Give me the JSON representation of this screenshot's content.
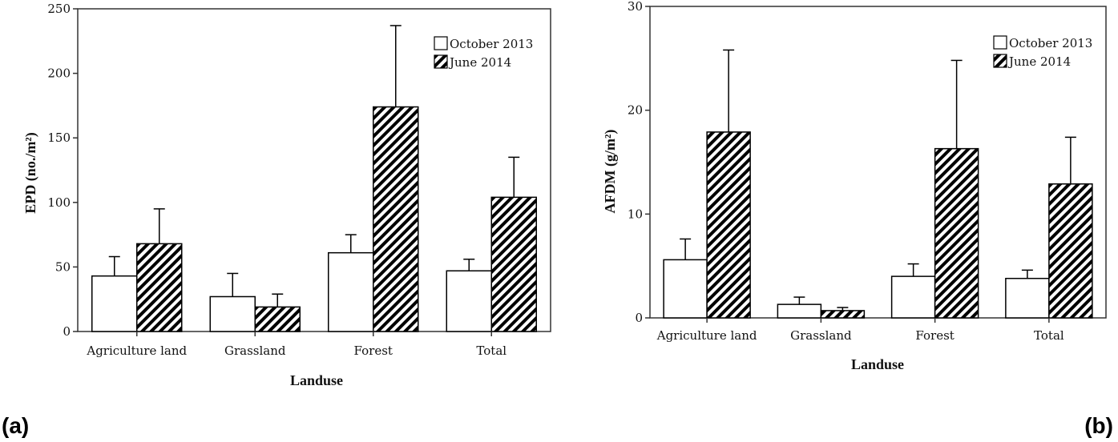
{
  "chart_data": [
    {
      "type": "bar",
      "panel_label": "(a)",
      "categories": [
        "Agriculture land",
        "Grassland",
        "Forest",
        "Total"
      ],
      "series": [
        {
          "name": "October 2013",
          "values": [
            43,
            27,
            61,
            47
          ],
          "error": [
            15,
            18,
            14,
            9
          ]
        },
        {
          "name": "June 2014",
          "values": [
            68,
            19,
            174,
            104
          ],
          "error": [
            27,
            10,
            63,
            31
          ]
        }
      ],
      "xlabel": "Landuse",
      "ylabel": "EPD (no./m²)",
      "ylim": [
        0,
        250
      ],
      "yticks": [
        0,
        50,
        100,
        150,
        200,
        250
      ],
      "legend_position": "top-right",
      "grid": false
    },
    {
      "type": "bar",
      "panel_label": "(b)",
      "categories": [
        "Agriculture land",
        "Grassland",
        "Forest",
        "Total"
      ],
      "series": [
        {
          "name": "October 2013",
          "values": [
            5.6,
            1.3,
            4.0,
            3.8
          ],
          "error": [
            2.0,
            0.7,
            1.2,
            0.8
          ]
        },
        {
          "name": "June 2014",
          "values": [
            17.9,
            0.7,
            16.3,
            12.9
          ],
          "error": [
            7.9,
            0.3,
            8.5,
            4.5
          ]
        }
      ],
      "xlabel": "Landuse",
      "ylabel": "AFDM (g/m²)",
      "ylim": [
        0,
        30
      ],
      "yticks": [
        0,
        10,
        20,
        30
      ],
      "legend_position": "top-right",
      "grid": false
    }
  ],
  "colors": {
    "axis": "#333333",
    "bar_fill_october": "#ffffff",
    "hatch": "#000000"
  }
}
